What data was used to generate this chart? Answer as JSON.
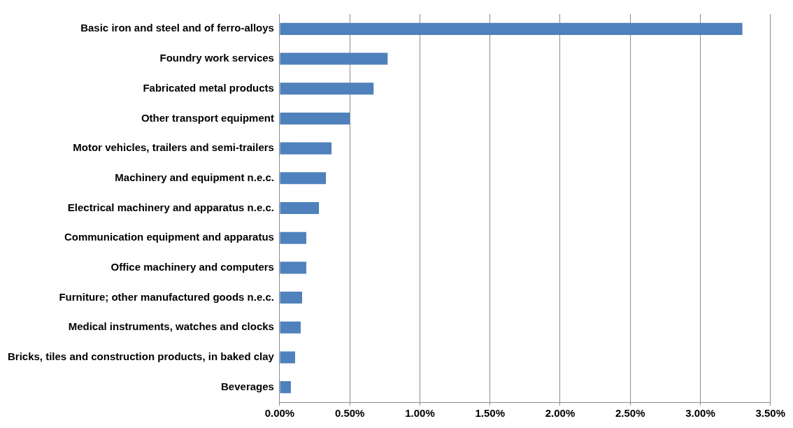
{
  "chart_data": {
    "type": "bar",
    "orientation": "horizontal",
    "categories": [
      "Basic iron and steel and of ferro-alloys",
      "Foundry work services",
      "Fabricated metal products",
      "Other transport equipment",
      "Motor vehicles, trailers and semi-trailers",
      "Machinery and equipment n.e.c.",
      "Electrical machinery and apparatus n.e.c.",
      "Communication equipment and apparatus",
      "Office machinery and computers",
      "Furniture; other manufactured goods n.e.c.",
      "Medical instruments, watches and clocks",
      "Bricks, tiles and construction products, in baked clay",
      "Beverages"
    ],
    "values": [
      3.3,
      0.77,
      0.67,
      0.5,
      0.37,
      0.33,
      0.28,
      0.19,
      0.19,
      0.16,
      0.15,
      0.11,
      0.08
    ],
    "color": "#4f81bd",
    "xlim": [
      0,
      3.5
    ],
    "xticks": [
      {
        "value": 0,
        "label": "0.00%"
      },
      {
        "value": 0.5,
        "label": "0.50%"
      },
      {
        "value": 1,
        "label": "1.00%"
      },
      {
        "value": 1.5,
        "label": "1.50%"
      },
      {
        "value": 2,
        "label": "2.00%"
      },
      {
        "value": 2.5,
        "label": "2.50%"
      },
      {
        "value": 3,
        "label": "3.00%"
      },
      {
        "value": 3.5,
        "label": "3.50%"
      }
    ],
    "grid": "x"
  }
}
